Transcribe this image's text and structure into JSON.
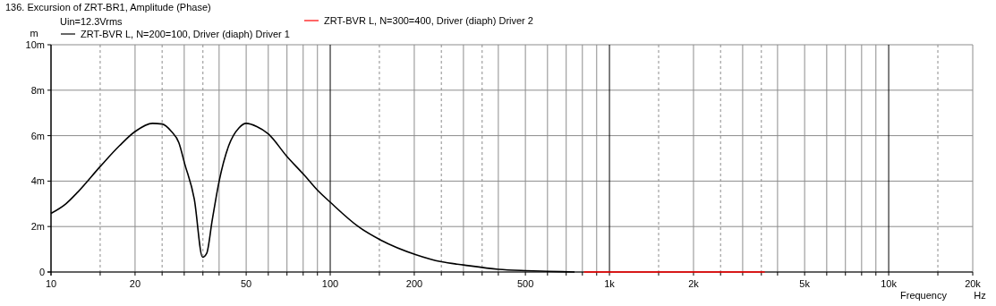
{
  "chart_data": {
    "type": "line",
    "title": "136. Excursion of ZRT-BR1, Amplitude (Phase)",
    "xlabel": "Frequency",
    "ylabel": "m",
    "annotations": [
      "Uin=12.3Vrms",
      "Hz"
    ],
    "log": "x",
    "grid": true,
    "legend": "top",
    "line_style": "solid",
    "xlim": [
      10,
      20000
    ],
    "ylim": [
      0,
      10
    ],
    "xticks": [
      10,
      {
        "value": 15,
        "label": null
      },
      20,
      {
        "value": 25,
        "label": null
      },
      {
        "value": 30,
        "label": null
      },
      {
        "value": 35,
        "label": null
      },
      {
        "value": 40,
        "label": null
      },
      50,
      {
        "value": 60,
        "label": null
      },
      {
        "value": 70,
        "label": null
      },
      {
        "value": 80,
        "label": null
      },
      {
        "value": 90,
        "label": null
      },
      100,
      {
        "value": 150,
        "label": null
      },
      200,
      {
        "value": 250,
        "label": null
      },
      {
        "value": 300,
        "label": null
      },
      {
        "value": 350,
        "label": null
      },
      {
        "value": 400,
        "label": null
      },
      500,
      {
        "value": 600,
        "label": null
      },
      {
        "value": 700,
        "label": null
      },
      {
        "value": 800,
        "label": null
      },
      {
        "value": 900,
        "label": null
      },
      {
        "value": 1000,
        "label": "1k"
      },
      {
        "value": 1500,
        "label": null
      },
      {
        "value": 2000,
        "label": "2k"
      },
      {
        "value": 2500,
        "label": null
      },
      {
        "value": 3000,
        "label": null
      },
      {
        "value": 3500,
        "label": null
      },
      {
        "value": 4000,
        "label": null
      },
      {
        "value": 5000,
        "label": "5k"
      },
      {
        "value": 6000,
        "label": null
      },
      {
        "value": 7000,
        "label": null
      },
      {
        "value": 8000,
        "label": null
      },
      {
        "value": 9000,
        "label": null
      },
      {
        "value": 10000,
        "label": "10k"
      },
      {
        "value": 15000,
        "label": null
      },
      {
        "value": 20000,
        "label": "20k"
      }
    ],
    "yticks": [
      0,
      {
        "value": 2,
        "label": "2m"
      },
      {
        "value": 4,
        "label": "4m"
      },
      {
        "value": 6,
        "label": "6m"
      },
      {
        "value": 8,
        "label": "8m"
      },
      {
        "value": 10,
        "label": "10m"
      }
    ],
    "series": [
      {
        "name": "ZRT-BVR L, N=300=400, Driver (diaph) Driver 2",
        "color": "#ff0000",
        "x": [
          810,
          3600
        ],
        "values": [
          0,
          0
        ]
      },
      {
        "name": "ZRT-BVR L, N=200=100, Driver (diaph) Driver 1",
        "color": "#000000",
        "x": [
          10,
          11.3,
          12.5,
          15,
          17.6,
          20,
          23.1,
          25,
          27,
          28.7,
          30.1,
          32.6,
          34.9,
          36.1,
          37.8,
          40,
          43.3,
          47.1,
          50,
          54.6,
          60,
          69.8,
          80.9,
          90,
          100,
          126,
          152,
          203,
          250,
          300,
          400,
          500,
          600,
          750
        ],
        "values": [
          2.58,
          3.0,
          3.53,
          4.64,
          5.56,
          6.18,
          6.54,
          6.51,
          6.18,
          5.69,
          4.77,
          3.2,
          0.65,
          0.82,
          2.29,
          3.99,
          5.56,
          6.34,
          6.54,
          6.4,
          6.08,
          5.1,
          4.25,
          3.6,
          3.07,
          2.0,
          1.4,
          0.76,
          0.45,
          0.31,
          0.12,
          0.06,
          0.03,
          0
        ]
      }
    ]
  }
}
